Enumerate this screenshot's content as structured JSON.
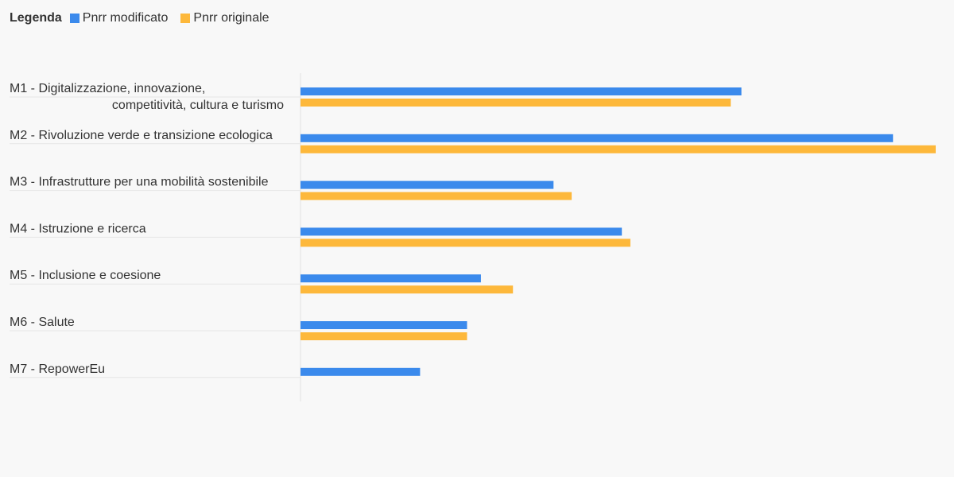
{
  "legend": {
    "title": "Legenda",
    "items": [
      {
        "label": "Pnrr modificato",
        "color": "#3b8aec"
      },
      {
        "label": "Pnrr originale",
        "color": "#fdb83b"
      }
    ]
  },
  "chart_data": {
    "type": "bar",
    "orientation": "horizontal",
    "categories": [
      "M1 - Digitalizzazione, innovazione, competitività, cultura e turismo",
      "M2 - Rivoluzione verde e transizione ecologica",
      "M3 - Infrastrutture per una mobilità sostenibile",
      "M4 - Istruzione e ricerca",
      "M5 - Inclusione e coesione",
      "M6 - Salute",
      "M7 - RepowerEu"
    ],
    "series": [
      {
        "name": "Pnrr modificato",
        "color": "#3b8aec",
        "values": [
          41.3,
          55.5,
          23.7,
          30.1,
          16.9,
          15.6,
          11.2
        ]
      },
      {
        "name": "Pnrr originale",
        "color": "#fdb83b",
        "values": [
          40.3,
          59.5,
          25.4,
          30.9,
          19.9,
          15.6,
          0
        ]
      }
    ],
    "xlim": [
      0,
      59.5
    ],
    "grid": false,
    "legend_position": "top-left"
  }
}
